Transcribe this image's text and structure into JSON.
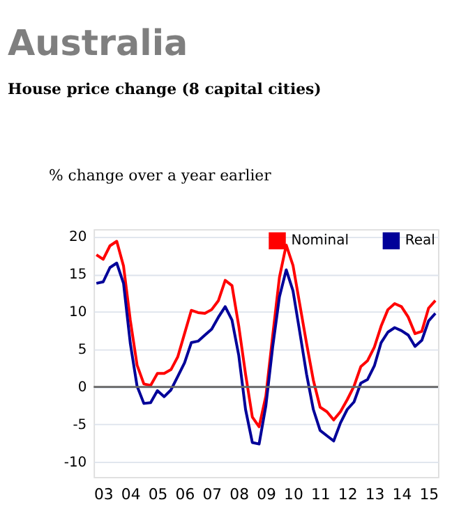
{
  "chart_data": {
    "type": "line",
    "title": "Australia",
    "subtitle": "House price change (8 capital cities)",
    "ylabel": "% change over a year earlier",
    "categories": [
      null,
      "03",
      null,
      null,
      null,
      "04",
      null,
      null,
      null,
      "05",
      null,
      null,
      null,
      "06",
      null,
      null,
      null,
      "07",
      null,
      null,
      null,
      "08",
      null,
      null,
      null,
      "09",
      null,
      null,
      null,
      "10",
      null,
      null,
      null,
      "11",
      null,
      null,
      null,
      "12",
      null,
      null,
      null,
      "13",
      null,
      null,
      null,
      "14",
      null,
      null,
      null,
      "15",
      null
    ],
    "series": [
      {
        "name": "Nominal",
        "color": "#ff0000",
        "values": [
          17.6,
          17.0,
          18.8,
          19.4,
          16.1,
          8.9,
          2.9,
          0.4,
          0.2,
          1.8,
          1.8,
          2.3,
          4.0,
          7.1,
          10.2,
          9.9,
          9.8,
          10.3,
          11.5,
          14.2,
          13.5,
          8.1,
          1.7,
          -4.0,
          -5.3,
          -1.2,
          6.8,
          14.6,
          18.9,
          16.2,
          11.0,
          5.8,
          0.9,
          -2.7,
          -3.3,
          -4.4,
          -3.3,
          -1.7,
          0.1,
          2.7,
          3.5,
          5.3,
          8.1,
          10.3,
          11.1,
          10.7,
          9.3,
          7.1,
          7.4,
          10.5,
          11.5
        ]
      },
      {
        "name": "Real",
        "color": "#000099",
        "values": [
          13.8,
          14.0,
          15.9,
          16.5,
          13.8,
          5.8,
          0.1,
          -2.2,
          -2.1,
          -0.5,
          -1.3,
          -0.4,
          1.4,
          3.2,
          5.9,
          6.1,
          6.9,
          7.7,
          9.3,
          10.7,
          8.9,
          4.2,
          -3.0,
          -7.4,
          -7.6,
          -2.5,
          5.3,
          12.0,
          15.6,
          12.8,
          7.3,
          1.7,
          -3.0,
          -5.8,
          -6.5,
          -7.2,
          -4.8,
          -3.0,
          -2.0,
          0.5,
          1.0,
          2.8,
          5.9,
          7.3,
          7.9,
          7.5,
          6.9,
          5.4,
          6.2,
          8.8,
          9.8
        ]
      }
    ],
    "ylim": [
      -12,
      21
    ],
    "yticks": [
      -10,
      -5,
      0,
      5,
      10,
      15,
      20
    ],
    "ref_lines": [
      {
        "axis": "y",
        "value": 0,
        "color": "#666666"
      }
    ],
    "grid": "y",
    "legend": "top right",
    "marker": "none",
    "line_style": "solid"
  }
}
